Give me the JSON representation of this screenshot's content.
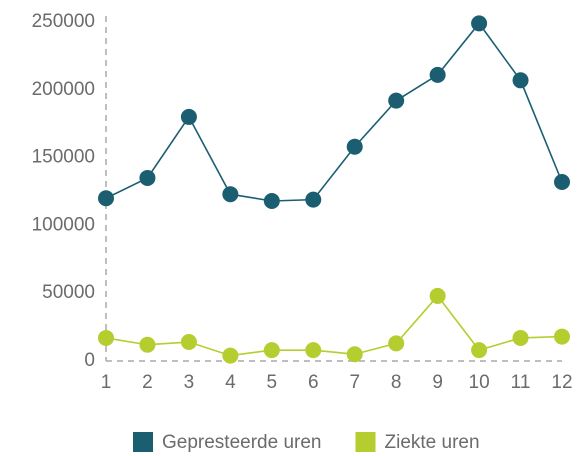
{
  "chart_data": {
    "type": "line",
    "categories": [
      "1",
      "2",
      "3",
      "4",
      "5",
      "6",
      "7",
      "8",
      "9",
      "10",
      "11",
      "12"
    ],
    "series": [
      {
        "name": "Gepresteerde uren",
        "color": "#1b5e72",
        "values": [
          120000,
          135000,
          180000,
          123000,
          118000,
          119000,
          158000,
          192000,
          211000,
          249000,
          207000,
          132000
        ]
      },
      {
        "name": "Ziekte uren",
        "color": "#b5cd2f",
        "values": [
          17000,
          12000,
          14000,
          4000,
          8000,
          8000,
          5000,
          13000,
          48000,
          8000,
          17000,
          18000
        ]
      }
    ],
    "ylim": [
      0,
      250000
    ],
    "yticks": [
      0,
      50000,
      100000,
      150000,
      200000,
      250000
    ],
    "grid": false,
    "legend": "bottom"
  }
}
